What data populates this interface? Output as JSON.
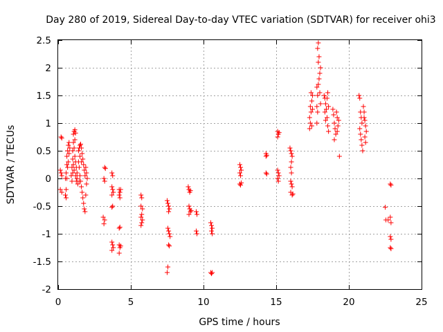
{
  "chart_data": {
    "type": "scatter",
    "title": "Day 280 of 2019, Sidereal Day-to-day VTEC variation (SDTVAR) for receiver ohi3",
    "xlabel": "GPS time / hours",
    "ylabel": "SDTVAR / TECUs",
    "xlim": [
      0,
      25
    ],
    "ylim": [
      -2,
      2.5
    ],
    "xticks": [
      0,
      5,
      10,
      15,
      20,
      25
    ],
    "yticks": [
      -2,
      -1.5,
      -1,
      -0.5,
      0,
      0.5,
      1,
      1.5,
      2,
      2.5
    ],
    "grid": true,
    "marker": "+",
    "color": "#ff0000",
    "series": [
      {
        "name": "SDTVAR",
        "points": [
          [
            0.2,
            0.75
          ],
          [
            0.25,
            0.73
          ],
          [
            0.15,
            0.15
          ],
          [
            0.2,
            0.1
          ],
          [
            0.25,
            0.05
          ],
          [
            0.15,
            -0.2
          ],
          [
            0.25,
            -0.25
          ],
          [
            0.5,
            -0.3
          ],
          [
            0.55,
            -0.2
          ],
          [
            0.5,
            0.0
          ],
          [
            0.55,
            0.1
          ],
          [
            0.6,
            0.25
          ],
          [
            0.6,
            0.4
          ],
          [
            0.65,
            0.5
          ],
          [
            0.7,
            0.6
          ],
          [
            0.75,
            0.65
          ],
          [
            0.8,
            0.55
          ],
          [
            0.75,
            0.45
          ],
          [
            0.7,
            0.3
          ],
          [
            0.65,
            0.2
          ],
          [
            0.6,
            0.0
          ],
          [
            0.55,
            -0.35
          ],
          [
            0.9,
            0.05
          ],
          [
            0.95,
            0.2
          ],
          [
            1.0,
            0.35
          ],
          [
            1.0,
            0.5
          ],
          [
            1.05,
            0.65
          ],
          [
            1.05,
            0.8
          ],
          [
            1.1,
            0.85
          ],
          [
            1.15,
            0.88
          ],
          [
            1.2,
            0.82
          ],
          [
            1.15,
            0.7
          ],
          [
            1.1,
            0.55
          ],
          [
            1.15,
            0.4
          ],
          [
            1.2,
            0.3
          ],
          [
            1.25,
            0.2
          ],
          [
            1.3,
            0.1
          ],
          [
            1.3,
            0.0
          ],
          [
            1.35,
            -0.1
          ],
          [
            1.25,
            -0.05
          ],
          [
            1.2,
            0.05
          ],
          [
            1.1,
            0.15
          ],
          [
            1.05,
            0.25
          ],
          [
            1.0,
            0.1
          ],
          [
            0.95,
            -0.05
          ],
          [
            1.4,
            0.5
          ],
          [
            1.45,
            0.55
          ],
          [
            1.5,
            0.6
          ],
          [
            1.55,
            0.62
          ],
          [
            1.6,
            0.55
          ],
          [
            1.65,
            0.45
          ],
          [
            1.7,
            0.35
          ],
          [
            1.75,
            0.25
          ],
          [
            1.8,
            0.15
          ],
          [
            1.85,
            0.05
          ],
          [
            1.6,
            0.3
          ],
          [
            1.5,
            0.4
          ],
          [
            1.45,
            0.2
          ],
          [
            1.5,
            0.05
          ],
          [
            1.55,
            -0.05
          ],
          [
            1.6,
            -0.15
          ],
          [
            1.65,
            -0.25
          ],
          [
            1.7,
            -0.35
          ],
          [
            1.75,
            -0.45
          ],
          [
            1.8,
            -0.55
          ],
          [
            1.85,
            -0.6
          ],
          [
            1.4,
            0.3
          ],
          [
            1.45,
            -0.05
          ],
          [
            1.9,
            0.2
          ],
          [
            1.95,
            0.1
          ],
          [
            2.0,
            0.0
          ],
          [
            1.95,
            -0.1
          ],
          [
            1.9,
            -0.3
          ],
          [
            3.2,
            0.2
          ],
          [
            3.25,
            0.18
          ],
          [
            3.15,
            0.0
          ],
          [
            3.2,
            -0.05
          ],
          [
            3.1,
            -0.7
          ],
          [
            3.2,
            -0.75
          ],
          [
            3.15,
            -0.82
          ],
          [
            3.7,
            0.1
          ],
          [
            3.75,
            0.05
          ],
          [
            3.7,
            -0.15
          ],
          [
            3.75,
            -0.2
          ],
          [
            3.8,
            -0.25
          ],
          [
            3.7,
            -0.3
          ],
          [
            3.75,
            -0.5
          ],
          [
            3.7,
            -0.52
          ],
          [
            3.7,
            -1.15
          ],
          [
            3.75,
            -1.2
          ],
          [
            3.8,
            -1.25
          ],
          [
            3.7,
            -1.3
          ],
          [
            4.2,
            -0.2
          ],
          [
            4.25,
            -0.25
          ],
          [
            4.2,
            -0.3
          ],
          [
            4.25,
            -0.35
          ],
          [
            4.3,
            -0.2
          ],
          [
            4.2,
            -0.9
          ],
          [
            4.25,
            -0.88
          ],
          [
            4.2,
            -1.2
          ],
          [
            4.25,
            -1.25
          ],
          [
            4.3,
            -1.22
          ],
          [
            4.2,
            -1.35
          ],
          [
            5.7,
            -0.3
          ],
          [
            5.75,
            -0.35
          ],
          [
            5.7,
            -0.5
          ],
          [
            5.8,
            -0.55
          ],
          [
            5.75,
            -0.65
          ],
          [
            5.7,
            -0.7
          ],
          [
            5.75,
            -0.8
          ],
          [
            5.7,
            -0.85
          ],
          [
            5.8,
            -0.75
          ],
          [
            7.5,
            -0.4
          ],
          [
            7.55,
            -0.45
          ],
          [
            7.6,
            -0.5
          ],
          [
            7.65,
            -0.55
          ],
          [
            7.6,
            -0.6
          ],
          [
            7.55,
            -0.9
          ],
          [
            7.6,
            -0.95
          ],
          [
            7.65,
            -1.0
          ],
          [
            7.7,
            -1.05
          ],
          [
            7.6,
            -1.2
          ],
          [
            7.65,
            -1.22
          ],
          [
            7.55,
            -1.6
          ],
          [
            7.5,
            -1.7
          ],
          [
            8.95,
            -0.15
          ],
          [
            9.0,
            -0.2
          ],
          [
            9.05,
            -0.25
          ],
          [
            9.1,
            -0.22
          ],
          [
            9.0,
            -0.5
          ],
          [
            9.05,
            -0.55
          ],
          [
            9.1,
            -0.6
          ],
          [
            9.0,
            -0.65
          ],
          [
            9.15,
            -0.58
          ],
          [
            9.5,
            -0.6
          ],
          [
            9.55,
            -0.65
          ],
          [
            9.5,
            -0.95
          ],
          [
            9.55,
            -1.0
          ],
          [
            10.5,
            -0.8
          ],
          [
            10.55,
            -0.85
          ],
          [
            10.6,
            -0.9
          ],
          [
            10.55,
            -0.95
          ],
          [
            10.6,
            -1.0
          ],
          [
            10.5,
            -1.7
          ],
          [
            10.55,
            -1.72
          ],
          [
            10.6,
            -1.7
          ],
          [
            12.5,
            0.25
          ],
          [
            12.55,
            0.2
          ],
          [
            12.6,
            0.15
          ],
          [
            12.5,
            0.1
          ],
          [
            12.55,
            0.05
          ],
          [
            12.5,
            -0.1
          ],
          [
            12.55,
            -0.12
          ],
          [
            12.6,
            -0.08
          ],
          [
            14.3,
            0.45
          ],
          [
            14.35,
            0.42
          ],
          [
            14.3,
            0.4
          ],
          [
            14.3,
            0.1
          ],
          [
            14.35,
            0.08
          ],
          [
            15.1,
            0.85
          ],
          [
            15.15,
            0.8
          ],
          [
            15.1,
            0.75
          ],
          [
            15.2,
            0.83
          ],
          [
            15.1,
            0.15
          ],
          [
            15.15,
            0.1
          ],
          [
            15.2,
            0.05
          ],
          [
            15.15,
            -0.05
          ],
          [
            15.1,
            0.0
          ],
          [
            15.95,
            0.55
          ],
          [
            16.0,
            0.5
          ],
          [
            16.05,
            0.45
          ],
          [
            16.1,
            0.4
          ],
          [
            16.05,
            0.3
          ],
          [
            16.0,
            0.2
          ],
          [
            16.05,
            0.1
          ],
          [
            16.0,
            -0.05
          ],
          [
            16.05,
            -0.1
          ],
          [
            16.1,
            -0.15
          ],
          [
            16.0,
            -0.25
          ],
          [
            16.1,
            -0.3
          ],
          [
            16.15,
            -0.28
          ],
          [
            17.3,
            0.9
          ],
          [
            17.35,
            1.0
          ],
          [
            17.4,
            1.2
          ],
          [
            17.45,
            1.4
          ],
          [
            17.5,
            1.5
          ],
          [
            17.4,
            1.55
          ],
          [
            17.35,
            1.3
          ],
          [
            17.3,
            1.1
          ],
          [
            17.45,
            0.95
          ],
          [
            17.5,
            1.25
          ],
          [
            17.8,
            1.3
          ],
          [
            17.85,
            1.5
          ],
          [
            17.9,
            1.7
          ],
          [
            17.95,
            1.8
          ],
          [
            18.0,
            1.9
          ],
          [
            18.05,
            2.0
          ],
          [
            17.9,
            2.1
          ],
          [
            17.95,
            2.2
          ],
          [
            17.85,
            2.35
          ],
          [
            17.9,
            2.45
          ],
          [
            17.8,
            1.65
          ],
          [
            17.85,
            1.2
          ],
          [
            17.8,
            1.0
          ],
          [
            18.0,
            1.55
          ],
          [
            18.05,
            1.35
          ],
          [
            18.3,
            1.5
          ],
          [
            18.35,
            1.45
          ],
          [
            18.4,
            1.35
          ],
          [
            18.45,
            1.25
          ],
          [
            18.5,
            1.1
          ],
          [
            18.55,
            0.95
          ],
          [
            18.6,
            0.85
          ],
          [
            18.4,
            1.05
          ],
          [
            18.5,
            1.45
          ],
          [
            18.6,
            1.3
          ],
          [
            18.55,
            1.55
          ],
          [
            18.35,
            1.2
          ],
          [
            18.9,
            1.25
          ],
          [
            18.95,
            1.15
          ],
          [
            19.0,
            1.0
          ],
          [
            19.05,
            0.9
          ],
          [
            19.1,
            0.8
          ],
          [
            19.0,
            0.7
          ],
          [
            19.15,
            1.2
          ],
          [
            19.2,
            1.1
          ],
          [
            19.25,
            0.95
          ],
          [
            19.2,
            0.85
          ],
          [
            19.3,
            1.05
          ],
          [
            19.35,
            0.4
          ],
          [
            20.7,
            1.5
          ],
          [
            20.75,
            1.45
          ],
          [
            20.8,
            1.2
          ],
          [
            20.85,
            1.1
          ],
          [
            20.9,
            1.0
          ],
          [
            20.8,
            0.8
          ],
          [
            20.85,
            0.7
          ],
          [
            20.9,
            0.6
          ],
          [
            20.95,
            0.5
          ],
          [
            20.75,
            0.9
          ],
          [
            21.0,
            1.3
          ],
          [
            21.05,
            1.2
          ],
          [
            21.1,
            1.05
          ],
          [
            21.15,
            0.95
          ],
          [
            21.2,
            0.85
          ],
          [
            21.1,
            0.75
          ],
          [
            21.05,
            1.1
          ],
          [
            21.15,
            0.65
          ],
          [
            22.5,
            -0.52
          ],
          [
            22.55,
            -0.75
          ],
          [
            22.7,
            -0.75
          ],
          [
            22.85,
            -0.1
          ],
          [
            22.9,
            -0.12
          ],
          [
            22.85,
            -0.7
          ],
          [
            22.9,
            -0.8
          ],
          [
            22.85,
            -1.05
          ],
          [
            22.9,
            -1.1
          ],
          [
            22.85,
            -1.25
          ],
          [
            22.9,
            -1.27
          ]
        ]
      }
    ]
  }
}
